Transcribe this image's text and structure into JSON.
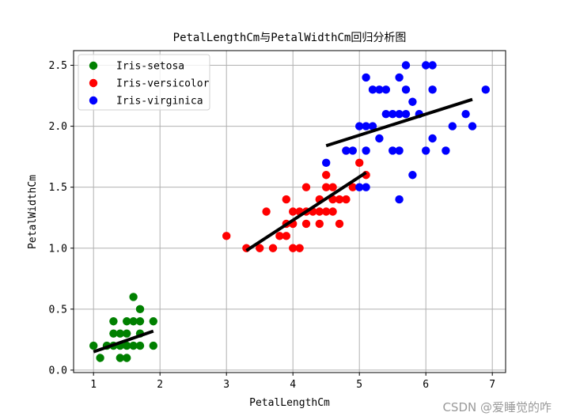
{
  "watermark": "CSDN @爱睡觉的咋",
  "chart_data": {
    "type": "scatter",
    "title": "PetalLengthCm与PetalWidthCm回归分析图",
    "xlabel": "PetalLengthCm",
    "ylabel": "PetalWidthCm",
    "xlim": [
      0.7,
      7.2
    ],
    "ylim": [
      -0.02,
      2.62
    ],
    "xticks": [
      1,
      2,
      3,
      4,
      5,
      6,
      7
    ],
    "yticks": [
      0.0,
      0.5,
      1.0,
      1.5,
      2.0,
      2.5
    ],
    "ytick_labels": [
      "0.0",
      "0.5",
      "1.0",
      "1.5",
      "2.0",
      "2.5"
    ],
    "grid": true,
    "legend_position": "top-left",
    "series": [
      {
        "name": "Iris-setosa",
        "color": "#008000",
        "points": [
          [
            1.0,
            0.2
          ],
          [
            1.1,
            0.1
          ],
          [
            1.2,
            0.2
          ],
          [
            1.3,
            0.2
          ],
          [
            1.3,
            0.3
          ],
          [
            1.3,
            0.4
          ],
          [
            1.4,
            0.1
          ],
          [
            1.4,
            0.2
          ],
          [
            1.4,
            0.3
          ],
          [
            1.5,
            0.1
          ],
          [
            1.5,
            0.2
          ],
          [
            1.5,
            0.3
          ],
          [
            1.5,
            0.4
          ],
          [
            1.6,
            0.2
          ],
          [
            1.6,
            0.4
          ],
          [
            1.6,
            0.6
          ],
          [
            1.7,
            0.2
          ],
          [
            1.7,
            0.3
          ],
          [
            1.7,
            0.4
          ],
          [
            1.7,
            0.5
          ],
          [
            1.9,
            0.2
          ],
          [
            1.9,
            0.4
          ]
        ],
        "fit": [
          [
            1.0,
            0.15
          ],
          [
            1.9,
            0.32
          ]
        ]
      },
      {
        "name": "Iris-versicolor",
        "color": "#ff0000",
        "points": [
          [
            3.0,
            1.1
          ],
          [
            3.3,
            1.0
          ],
          [
            3.5,
            1.0
          ],
          [
            3.6,
            1.3
          ],
          [
            3.7,
            1.0
          ],
          [
            3.8,
            1.1
          ],
          [
            3.9,
            1.1
          ],
          [
            3.9,
            1.2
          ],
          [
            3.9,
            1.4
          ],
          [
            4.0,
            1.0
          ],
          [
            4.0,
            1.2
          ],
          [
            4.0,
            1.3
          ],
          [
            4.1,
            1.0
          ],
          [
            4.1,
            1.3
          ],
          [
            4.2,
            1.2
          ],
          [
            4.2,
            1.3
          ],
          [
            4.2,
            1.5
          ],
          [
            4.3,
            1.3
          ],
          [
            4.4,
            1.2
          ],
          [
            4.4,
            1.3
          ],
          [
            4.4,
            1.4
          ],
          [
            4.5,
            1.3
          ],
          [
            4.5,
            1.5
          ],
          [
            4.5,
            1.6
          ],
          [
            4.6,
            1.3
          ],
          [
            4.6,
            1.4
          ],
          [
            4.6,
            1.5
          ],
          [
            4.7,
            1.2
          ],
          [
            4.7,
            1.4
          ],
          [
            4.8,
            1.4
          ],
          [
            4.8,
            1.8
          ],
          [
            4.9,
            1.5
          ],
          [
            5.0,
            1.7
          ],
          [
            5.1,
            1.6
          ]
        ],
        "fit": [
          [
            3.3,
            0.98
          ],
          [
            5.1,
            1.62
          ]
        ]
      },
      {
        "name": "Iris-virginica",
        "color": "#0000ff",
        "points": [
          [
            4.5,
            1.7
          ],
          [
            4.8,
            1.8
          ],
          [
            4.9,
            1.8
          ],
          [
            5.0,
            1.5
          ],
          [
            5.0,
            2.0
          ],
          [
            5.1,
            1.5
          ],
          [
            5.1,
            1.8
          ],
          [
            5.1,
            2.0
          ],
          [
            5.1,
            2.4
          ],
          [
            5.2,
            2.0
          ],
          [
            5.2,
            2.3
          ],
          [
            5.3,
            1.9
          ],
          [
            5.3,
            2.3
          ],
          [
            5.4,
            2.1
          ],
          [
            5.4,
            2.3
          ],
          [
            5.5,
            1.8
          ],
          [
            5.5,
            2.1
          ],
          [
            5.6,
            1.4
          ],
          [
            5.6,
            1.8
          ],
          [
            5.6,
            2.1
          ],
          [
            5.6,
            2.4
          ],
          [
            5.7,
            2.1
          ],
          [
            5.7,
            2.3
          ],
          [
            5.7,
            2.5
          ],
          [
            5.8,
            1.6
          ],
          [
            5.8,
            2.2
          ],
          [
            5.9,
            2.1
          ],
          [
            6.0,
            1.8
          ],
          [
            6.0,
            2.5
          ],
          [
            6.1,
            1.9
          ],
          [
            6.1,
            2.3
          ],
          [
            6.1,
            2.5
          ],
          [
            6.3,
            1.8
          ],
          [
            6.4,
            2.0
          ],
          [
            6.6,
            2.1
          ],
          [
            6.7,
            2.0
          ],
          [
            6.9,
            2.3
          ]
        ],
        "fit": [
          [
            4.5,
            1.84
          ],
          [
            6.7,
            2.22
          ]
        ]
      }
    ]
  }
}
